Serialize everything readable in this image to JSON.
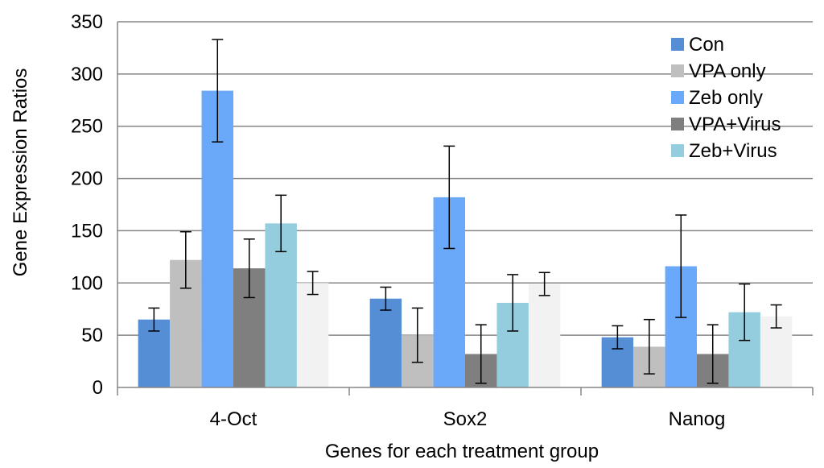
{
  "chart_data": {
    "type": "bar",
    "xlabel": "Genes for each treatment group",
    "ylabel": "Gene Expression Ratios",
    "ylim": [
      0,
      350
    ],
    "yticks": [
      0,
      50,
      100,
      150,
      200,
      250,
      300,
      350
    ],
    "grid": true,
    "legend_position": "top-right",
    "categories": [
      "4-Oct",
      "Sox2",
      "Nanog"
    ],
    "series": [
      {
        "name": "Con",
        "color": "#558ed5",
        "values": [
          65,
          85,
          48
        ],
        "errors": [
          11,
          11,
          11
        ],
        "legend": true
      },
      {
        "name": "VPA only",
        "color": "#bfbfbf",
        "values": [
          122,
          50,
          39
        ],
        "errors": [
          27,
          26,
          26
        ],
        "legend": true
      },
      {
        "name": "Zeb only",
        "color": "#6aa8fa",
        "values": [
          284,
          182,
          116
        ],
        "errors": [
          49,
          49,
          49
        ],
        "legend": true
      },
      {
        "name": "VPA+Virus",
        "color": "#7f7f7f",
        "values": [
          114,
          32,
          32
        ],
        "errors": [
          28,
          28,
          28
        ],
        "legend": true
      },
      {
        "name": "Zeb+Virus",
        "color": "#94cddd",
        "values": [
          157,
          81,
          72
        ],
        "errors": [
          27,
          27,
          27
        ],
        "legend": true
      },
      {
        "color": "#f2f2f2",
        "values": [
          100,
          99,
          68
        ],
        "errors": [
          11,
          11,
          11
        ],
        "legend": false
      }
    ]
  }
}
